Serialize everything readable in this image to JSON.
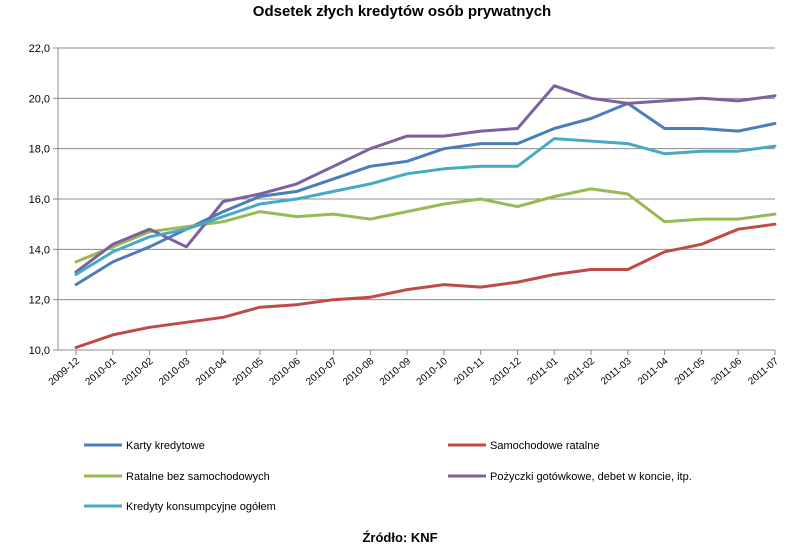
{
  "chart_data": {
    "type": "line",
    "title": "Odsetek złych kredytów osób prywatnych",
    "source": "Źródło: KNF",
    "xlabel": "",
    "ylabel": "",
    "ylim": [
      10.0,
      22.0
    ],
    "yticks": [
      "10,0",
      "12,0",
      "14,0",
      "16,0",
      "18,0",
      "20,0",
      "22,0"
    ],
    "grid": true,
    "legend_position": "bottom",
    "categories": [
      "2009-12",
      "2010-01",
      "2010-02",
      "2010-03",
      "2010-04",
      "2010-05",
      "2010-06",
      "2010-07",
      "2010-08",
      "2010-09",
      "2010-10",
      "2010-11",
      "2010-12",
      "2011-01",
      "2011-02",
      "2011-03",
      "2011-04",
      "2011-05",
      "2011-06",
      "2011-07"
    ],
    "series": [
      {
        "name": "Karty kredytowe",
        "color": "#4a7ebb",
        "values": [
          12.6,
          13.5,
          14.1,
          14.8,
          15.5,
          16.1,
          16.3,
          16.8,
          17.3,
          17.5,
          18.0,
          18.2,
          18.2,
          18.8,
          19.2,
          19.8,
          18.8,
          18.8,
          18.7,
          19.0
        ]
      },
      {
        "name": "Samochodowe ratalne",
        "color": "#be4b48",
        "values": [
          10.1,
          10.6,
          10.9,
          11.1,
          11.3,
          11.7,
          11.8,
          12.0,
          12.1,
          12.4,
          12.6,
          12.5,
          12.7,
          13.0,
          13.2,
          13.2,
          13.9,
          14.2,
          14.8,
          15.0
        ]
      },
      {
        "name": "Ratalne bez samochodowych",
        "color": "#98b954",
        "values": [
          13.5,
          14.1,
          14.7,
          14.9,
          15.1,
          15.5,
          15.3,
          15.4,
          15.2,
          15.5,
          15.8,
          16.0,
          15.7,
          16.1,
          16.4,
          16.2,
          15.1,
          15.2,
          15.2,
          15.4
        ]
      },
      {
        "name": "Pożyczki gotówkowe, debet w koncie, itp.",
        "color": "#7d60a0",
        "values": [
          13.1,
          14.2,
          14.8,
          14.1,
          15.9,
          16.2,
          16.6,
          17.3,
          18.0,
          18.5,
          18.5,
          18.7,
          18.8,
          20.5,
          20.0,
          19.8,
          19.9,
          20.0,
          19.9,
          20.1
        ]
      },
      {
        "name": "Kredyty konsumpcyjne ogółem",
        "color": "#46aac5",
        "values": [
          13.0,
          13.9,
          14.5,
          14.8,
          15.3,
          15.8,
          16.0,
          16.3,
          16.6,
          17.0,
          17.2,
          17.3,
          17.3,
          18.4,
          18.3,
          18.2,
          17.8,
          17.9,
          17.9,
          18.1
        ]
      }
    ]
  }
}
